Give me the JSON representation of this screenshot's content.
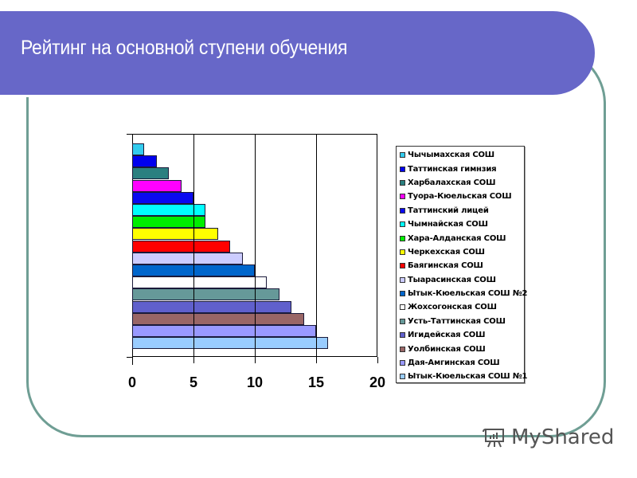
{
  "slide": {
    "title": "Рейтинг на основной ступени обучения",
    "watermark": "MyShared"
  },
  "colors": {
    "banner": "#6767c8",
    "frame": "#6f9e94"
  },
  "chart_data": {
    "type": "bar",
    "orientation": "horizontal",
    "title": "Рейтинг на основной ступени обучения",
    "xlabel": "",
    "ylabel": "",
    "xlim": [
      0,
      20
    ],
    "x_ticks": [
      "0",
      "5",
      "10",
      "15",
      "20"
    ],
    "grid": true,
    "legend_position": "right",
    "categories": [
      "Чычымахская СОШ",
      "Таттинская гимнзия",
      "Харбалахская СОШ",
      "Туора-Кюельская СОШ",
      "Таттинский лицей",
      "Чымнайская СОШ",
      "Хара-Алданская СОШ",
      "Черкехская СОШ",
      "Баягинская СОШ",
      "Тыарасинская СОШ",
      "Ытык-Кюельская СОШ №2",
      "Жохсогонская СОШ",
      "Усть-Таттинская СОШ",
      "Игидейская СОШ",
      "Уолбинская СОШ",
      "Дая-Амгинская СОШ",
      "Ытык-Кюельская СОШ №1"
    ],
    "values": [
      1,
      2,
      3,
      4,
      5,
      6,
      6,
      7,
      8,
      9,
      10,
      11,
      12,
      13,
      14,
      15,
      16
    ],
    "series_colors": [
      "#33ccee",
      "#0000ee",
      "#2a8080",
      "#ff00ff",
      "#0a0af0",
      "#00ffff",
      "#00ee00",
      "#ffff00",
      "#ff0000",
      "#ccccff",
      "#0066cc",
      "#ffffff",
      "#669999",
      "#6060cc",
      "#996666",
      "#9999ff",
      "#99ccff"
    ]
  }
}
